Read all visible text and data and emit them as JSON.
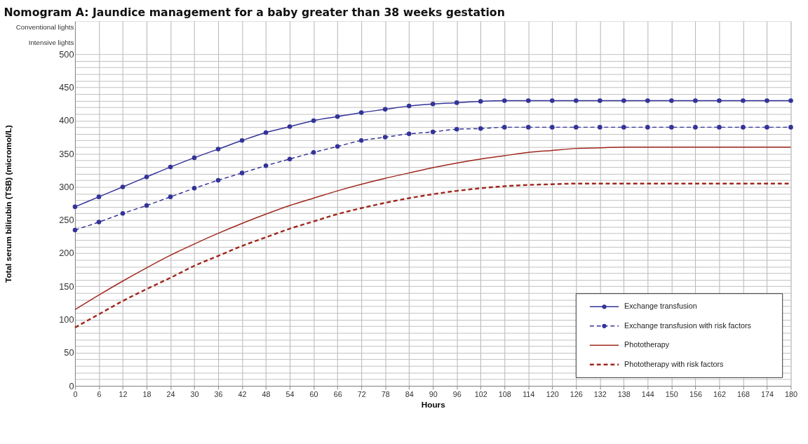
{
  "chart_data": {
    "type": "line",
    "title": "Nomogram A: Jaundice management for a baby greater than 38 weeks gestation",
    "xlabel": "Hours",
    "ylabel": "Total serum bilirubin (TSB) (micromol/L)",
    "x": [
      0,
      6,
      12,
      18,
      24,
      30,
      36,
      42,
      48,
      54,
      60,
      66,
      72,
      78,
      84,
      90,
      96,
      102,
      108,
      114,
      120,
      126,
      132,
      138,
      144,
      150,
      156,
      162,
      168,
      174,
      180
    ],
    "xlim": [
      0,
      180
    ],
    "xticks": [
      0,
      6,
      12,
      18,
      24,
      30,
      36,
      42,
      48,
      54,
      60,
      66,
      72,
      78,
      84,
      90,
      96,
      102,
      108,
      114,
      120,
      126,
      132,
      138,
      144,
      150,
      156,
      162,
      168,
      174,
      180
    ],
    "ylim": [
      0,
      550
    ],
    "yticks": [
      0,
      {
        "value": 10,
        "label": null
      },
      {
        "value": 20,
        "label": null
      },
      {
        "value": 30,
        "label": null
      },
      {
        "value": 40,
        "label": null
      },
      50,
      {
        "value": 60,
        "label": null
      },
      {
        "value": 70,
        "label": null
      },
      {
        "value": 80,
        "label": null
      },
      {
        "value": 90,
        "label": null
      },
      100,
      {
        "value": 110,
        "label": null
      },
      {
        "value": 120,
        "label": null
      },
      {
        "value": 130,
        "label": null
      },
      {
        "value": 140,
        "label": null
      },
      150,
      {
        "value": 160,
        "label": null
      },
      {
        "value": 170,
        "label": null
      },
      {
        "value": 180,
        "label": null
      },
      {
        "value": 190,
        "label": null
      },
      200,
      {
        "value": 210,
        "label": null
      },
      {
        "value": 220,
        "label": null
      },
      {
        "value": 230,
        "label": null
      },
      {
        "value": 240,
        "label": null
      },
      250,
      {
        "value": 260,
        "label": null
      },
      {
        "value": 270,
        "label": null
      },
      {
        "value": 280,
        "label": null
      },
      {
        "value": 290,
        "label": null
      },
      300,
      {
        "value": 310,
        "label": null
      },
      {
        "value": 320,
        "label": null
      },
      {
        "value": 330,
        "label": null
      },
      {
        "value": 340,
        "label": null
      },
      350,
      {
        "value": 360,
        "label": null
      },
      {
        "value": 370,
        "label": null
      },
      {
        "value": 380,
        "label": null
      },
      {
        "value": 390,
        "label": null
      },
      400,
      {
        "value": 410,
        "label": null
      },
      {
        "value": 420,
        "label": null
      },
      {
        "value": 430,
        "label": null
      },
      {
        "value": 440,
        "label": null
      },
      450,
      {
        "value": 460,
        "label": null
      },
      {
        "value": 470,
        "label": null
      },
      {
        "value": 480,
        "label": null
      },
      {
        "value": 490,
        "label": null
      },
      500,
      {
        "value": 518,
        "label": "Intensive lights"
      },
      {
        "value": 541,
        "label": "Conventional lights"
      }
    ],
    "grid": true,
    "legend": "bottom right",
    "series": [
      {
        "name": "Exchange transfusion",
        "color": "#333399",
        "marker": "circle",
        "line_style": "solid",
        "values": [
          270,
          285,
          300,
          315,
          330,
          344,
          357,
          370,
          382,
          391,
          400,
          406,
          412,
          417,
          422,
          425,
          427,
          429,
          430,
          430,
          430,
          430,
          430,
          430,
          430,
          430,
          430,
          430,
          430,
          430,
          430
        ]
      },
      {
        "name": "Exchange transfusion with risk factors",
        "color": "#333399",
        "marker": "circle",
        "line_style": "dashed",
        "values": [
          235,
          247,
          260,
          272,
          285,
          298,
          310,
          321,
          332,
          342,
          352,
          361,
          370,
          375,
          380,
          383,
          387,
          388,
          390,
          390,
          390,
          390,
          390,
          390,
          390,
          390,
          390,
          390,
          390,
          390,
          390
        ]
      },
      {
        "name": "Phototherapy",
        "color": "#a0281e",
        "marker": "none",
        "line_style": "solid",
        "values": [
          115,
          137,
          158,
          178,
          197,
          214,
          230,
          245,
          259,
          272,
          283,
          294,
          304,
          313,
          321,
          329,
          336,
          342,
          347,
          352,
          355,
          358,
          359,
          360,
          360,
          360,
          360,
          360,
          360,
          360,
          360
        ]
      },
      {
        "name": "Phototherapy with risk factors",
        "color": "#a0281e",
        "marker": "none",
        "line_style": "dashed",
        "values": [
          88,
          108,
          128,
          146,
          163,
          181,
          196,
          211,
          224,
          237,
          248,
          259,
          268,
          276,
          283,
          289,
          294,
          298,
          301,
          303,
          304,
          305,
          305,
          305,
          305,
          305,
          305,
          305,
          305,
          305,
          305
        ]
      }
    ]
  }
}
